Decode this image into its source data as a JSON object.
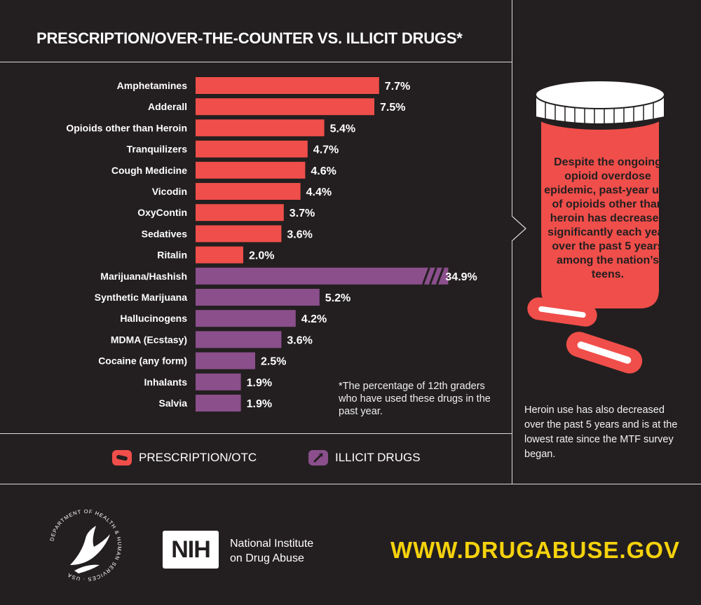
{
  "chart_data": {
    "type": "bar",
    "orientation": "horizontal",
    "title": "PRESCRIPTION/OVER-THE-COUNTER VS. ILLICIT DRUGS*",
    "categories": [
      "Amphetamines",
      "Adderall",
      "Opioids other than Heroin",
      "Tranquilizers",
      "Cough Medicine",
      "Vicodin",
      "OxyContin",
      "Sedatives",
      "Ritalin",
      "Marijuana/Hashish",
      "Synthetic Marijuana",
      "Hallucinogens",
      "MDMA (Ecstasy)",
      "Cocaine (any form)",
      "Inhalants",
      "Salvia"
    ],
    "values": [
      7.7,
      7.5,
      5.4,
      4.7,
      4.6,
      4.4,
      3.7,
      3.6,
      2.0,
      34.9,
      5.2,
      4.2,
      3.6,
      2.5,
      1.9,
      1.9
    ],
    "value_labels": [
      "7.7%",
      "7.5%",
      "5.4%",
      "4.7%",
      "4.6%",
      "4.4%",
      "3.7%",
      "3.6%",
      "2.0%",
      "34.9%",
      "5.2%",
      "4.2%",
      "3.6%",
      "2.5%",
      "1.9%",
      "1.9%"
    ],
    "groups": [
      "prescription",
      "prescription",
      "prescription",
      "prescription",
      "prescription",
      "prescription",
      "prescription",
      "prescription",
      "prescription",
      "illicit",
      "illicit",
      "illicit",
      "illicit",
      "illicit",
      "illicit",
      "illicit"
    ],
    "broken_axis_categories": [
      "Marijuana/Hashish"
    ],
    "legend": [
      {
        "name": "PRESCRIPTION/OTC",
        "color": "#f04e4a"
      },
      {
        "name": "ILLICIT DRUGS",
        "color": "#8b4f8c"
      }
    ],
    "colors": {
      "prescription": "#f04e4a",
      "illicit": "#8b4f8c"
    },
    "footnote": "*The percentage of 12th graders who have used these drugs in the past year.",
    "legend_placement": "bottom",
    "grid": false
  },
  "sidebar": {
    "bottle_text": "Despite the ongoing opioid overdose epidemic, past-year use of opioids other than heroin has decreased significantly each year over the past 5 years among the nation’s teens.",
    "note": "Heroin use has also decreased over the past 5 years and is at the lowest rate since the MTF survey began."
  },
  "footer": {
    "nih_logo": "NIH",
    "nih_name_line1": "National Institute",
    "nih_name_line2": "on Drug Abuse",
    "url": "WWW.DRUGABUSE.GOV",
    "hhs_seal_text": "DEPARTMENT OF HEALTH & HUMAN SERVICES · USA"
  },
  "icons": {
    "prescription_legend": "pill-icon",
    "illicit_legend": "syringe-icon",
    "sidebar_image": "pill-bottle-icon"
  }
}
